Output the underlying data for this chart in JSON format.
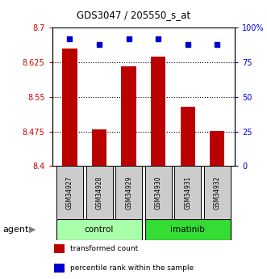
{
  "title": "GDS3047 / 205550_s_at",
  "samples": [
    "GSM34927",
    "GSM34928",
    "GSM34929",
    "GSM34930",
    "GSM34931",
    "GSM34932"
  ],
  "groups": [
    "control",
    "control",
    "control",
    "imatinib",
    "imatinib",
    "imatinib"
  ],
  "group_labels": [
    "control",
    "imatinib"
  ],
  "bar_values": [
    8.655,
    8.479,
    8.617,
    8.638,
    8.528,
    8.476
  ],
  "percentile_values": [
    92,
    88,
    92,
    92,
    88,
    88
  ],
  "bar_color": "#bb0000",
  "dot_color": "#0000cc",
  "ylim_left": [
    8.4,
    8.7
  ],
  "ylim_right": [
    0,
    100
  ],
  "yticks_left": [
    8.4,
    8.475,
    8.55,
    8.625,
    8.7
  ],
  "yticks_right": [
    0,
    25,
    50,
    75,
    100
  ],
  "ytick_labels_left": [
    "8.4",
    "8.475",
    "8.55",
    "8.625",
    "8.7"
  ],
  "ytick_labels_right": [
    "0",
    "25",
    "50",
    "75",
    "100%"
  ],
  "grid_values": [
    8.475,
    8.55,
    8.625
  ],
  "control_color": "#aaffaa",
  "imatinib_color": "#33dd33",
  "label_bg_color": "#cccccc",
  "legend_items": [
    {
      "color": "#bb0000",
      "label": "transformed count"
    },
    {
      "color": "#0000cc",
      "label": "percentile rank within the sample"
    }
  ]
}
